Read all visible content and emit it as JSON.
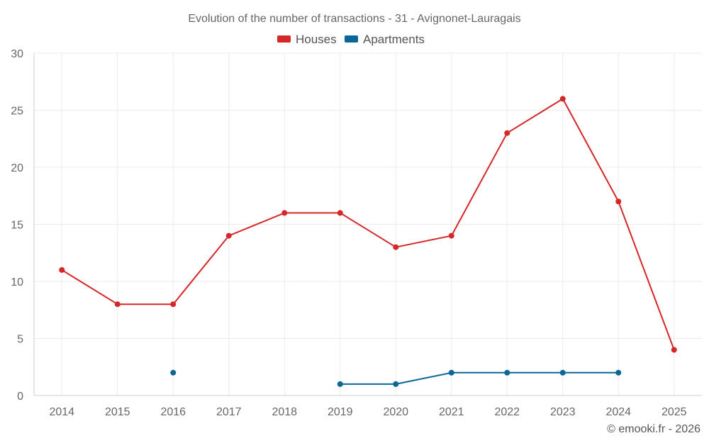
{
  "chart_data": {
    "type": "line",
    "title": "Evolution of the number of transactions - 31 - Avignonet-Lauragais",
    "categories": [
      "2014",
      "2015",
      "2016",
      "2017",
      "2018",
      "2019",
      "2020",
      "2021",
      "2022",
      "2023",
      "2024",
      "2025"
    ],
    "series": [
      {
        "name": "Houses",
        "color": "#d62728",
        "values": [
          11,
          8,
          8,
          14,
          16,
          16,
          13,
          14,
          23,
          26,
          17,
          4
        ]
      },
      {
        "name": "Apartments",
        "color": "#0b6696",
        "values": [
          null,
          null,
          2,
          null,
          null,
          1,
          1,
          2,
          2,
          2,
          2,
          null
        ]
      }
    ],
    "ylim": [
      0,
      30
    ],
    "yticks": [
      0,
      5,
      10,
      15,
      20,
      25,
      30
    ],
    "xlabel": "",
    "ylabel": "",
    "grid": true,
    "legend_position": "top-center"
  },
  "footer": {
    "credit": "© emooki.fr - 2026"
  }
}
